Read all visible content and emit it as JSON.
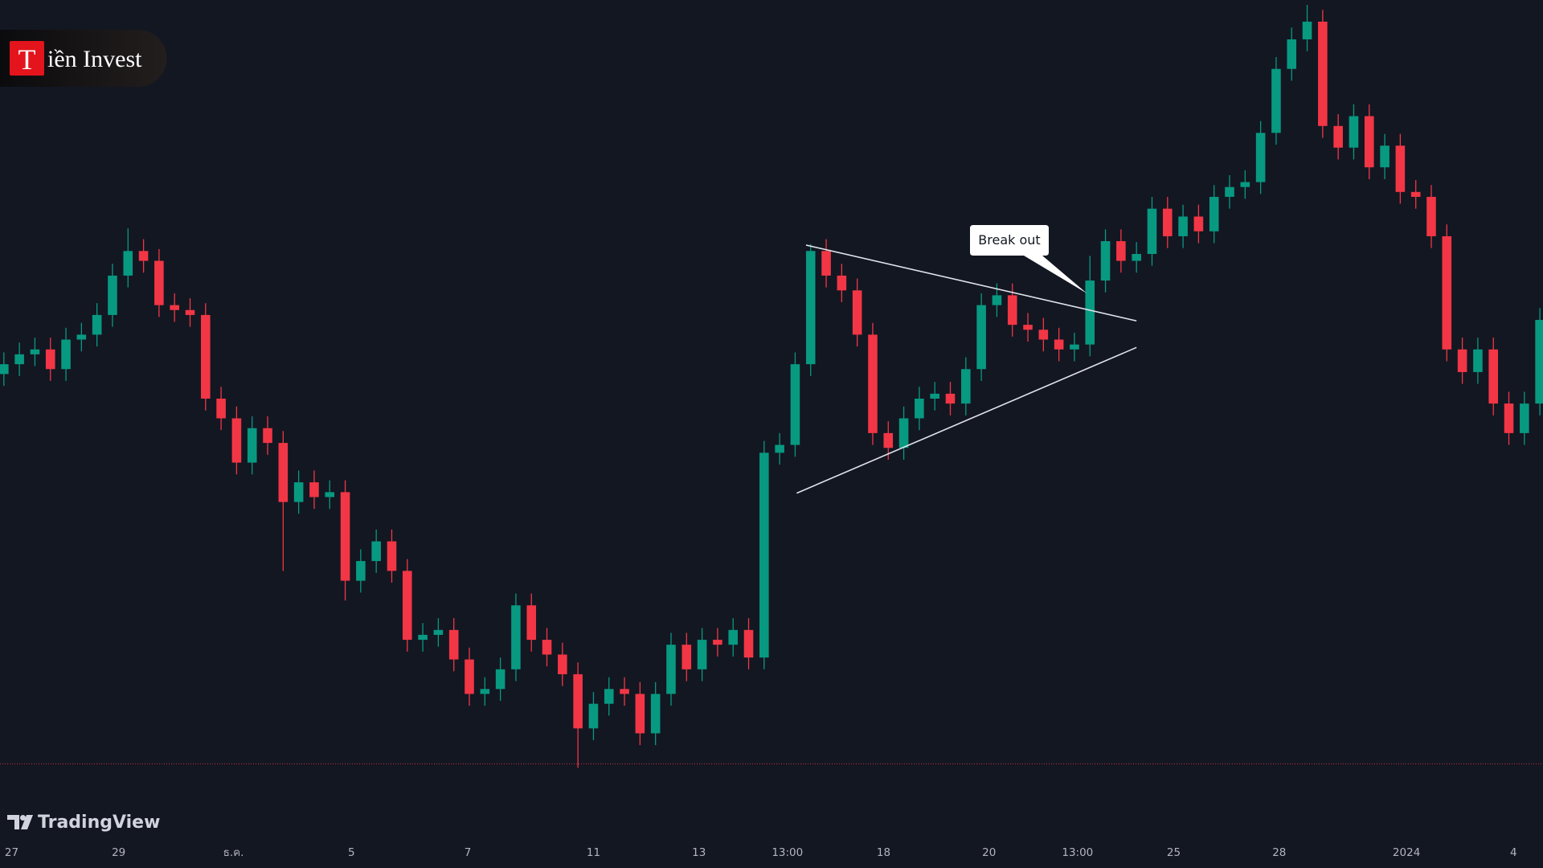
{
  "chart_data": {
    "type": "candlestick",
    "logo": {
      "letter": "T",
      "text": "iền Invest"
    },
    "watermark": "TradingView",
    "annotation": {
      "text": "Break out",
      "x": 69.8,
      "y": 602
    },
    "up_color": "#089981",
    "down_color": "#f23645",
    "xlim": [
      -0.25,
      99.2
    ],
    "ylim": [
      50,
      900
    ],
    "xticks": [
      {
        "value": 0.5,
        "label": "27"
      },
      {
        "value": 7.4,
        "label": "29"
      },
      {
        "value": 14.8,
        "label": "ธ.ค."
      },
      {
        "value": 22.4,
        "label": "5"
      },
      {
        "value": 29.9,
        "label": "7"
      },
      {
        "value": 38.0,
        "label": "11"
      },
      {
        "value": 44.8,
        "label": "13"
      },
      {
        "value": 50.5,
        "label": "13:00"
      },
      {
        "value": 56.7,
        "label": "18"
      },
      {
        "value": 63.5,
        "label": "20"
      },
      {
        "value": 69.2,
        "label": "13:00"
      },
      {
        "value": 75.4,
        "label": "25"
      },
      {
        "value": 82.2,
        "label": "28"
      },
      {
        "value": 90.4,
        "label": "2024"
      },
      {
        "value": 97.3,
        "label": "4"
      }
    ],
    "price_line": 124,
    "trendlines": [
      {
        "x": [
          51.7,
          73.0
        ],
        "y": [
          651,
          574
        ]
      },
      {
        "x": [
          51.1,
          73.0
        ],
        "y": [
          399,
          547
        ]
      }
    ],
    "open": [
      520,
      530,
      540,
      545,
      525,
      555,
      560,
      580,
      620,
      645,
      635,
      590,
      585,
      580,
      495,
      475,
      430,
      465,
      450,
      390,
      410,
      395,
      400,
      310,
      330,
      350,
      320,
      250,
      255,
      260,
      230,
      195,
      200,
      220,
      285,
      250,
      235,
      215,
      160,
      185,
      200,
      195,
      155,
      195,
      245,
      220,
      250,
      245,
      260,
      232,
      440,
      448,
      530,
      645,
      620,
      605,
      560,
      460,
      445,
      475,
      495,
      500,
      490,
      525,
      590,
      600,
      570,
      565,
      555,
      545,
      550,
      615,
      655,
      635,
      642,
      688,
      660,
      680,
      665,
      700,
      710,
      715,
      765,
      830,
      860,
      878,
      772,
      750,
      782,
      730,
      752,
      705,
      700,
      660,
      545,
      522,
      545,
      490,
      460,
      490
    ],
    "high": [
      542,
      552,
      557,
      557,
      567,
      572,
      592,
      632,
      668,
      657,
      647,
      602,
      597,
      592,
      507,
      487,
      477,
      477,
      462,
      422,
      422,
      412,
      412,
      342,
      362,
      362,
      332,
      267,
      272,
      272,
      242,
      212,
      232,
      297,
      297,
      262,
      247,
      227,
      197,
      212,
      212,
      207,
      207,
      257,
      257,
      262,
      262,
      272,
      272,
      452,
      460,
      542,
      652,
      657,
      632,
      617,
      572,
      472,
      487,
      507,
      512,
      512,
      537,
      602,
      612,
      612,
      582,
      577,
      567,
      562,
      640,
      667,
      667,
      654,
      700,
      700,
      692,
      692,
      712,
      722,
      727,
      777,
      842,
      872,
      895,
      890,
      784,
      794,
      794,
      764,
      764,
      717,
      712,
      672,
      557,
      557,
      557,
      502,
      502,
      587
    ],
    "low": [
      508,
      518,
      528,
      513,
      513,
      543,
      548,
      568,
      608,
      623,
      578,
      573,
      568,
      483,
      463,
      418,
      418,
      438,
      320,
      378,
      383,
      383,
      290,
      298,
      318,
      308,
      238,
      238,
      243,
      218,
      183,
      183,
      188,
      208,
      238,
      223,
      203,
      120,
      148,
      173,
      183,
      143,
      143,
      183,
      208,
      208,
      233,
      233,
      220,
      220,
      428,
      436,
      518,
      608,
      593,
      548,
      448,
      433,
      433,
      463,
      483,
      478,
      478,
      513,
      578,
      558,
      553,
      543,
      533,
      533,
      538,
      603,
      623,
      623,
      630,
      648,
      648,
      653,
      653,
      688,
      698,
      703,
      753,
      818,
      848,
      760,
      738,
      738,
      718,
      718,
      693,
      688,
      648,
      533,
      510,
      510,
      478,
      448,
      448,
      478
    ],
    "close": [
      530,
      540,
      545,
      525,
      555,
      560,
      580,
      620,
      645,
      635,
      590,
      585,
      580,
      495,
      475,
      430,
      465,
      450,
      390,
      410,
      395,
      400,
      310,
      330,
      350,
      320,
      250,
      255,
      260,
      230,
      195,
      200,
      220,
      285,
      250,
      235,
      215,
      160,
      185,
      200,
      195,
      155,
      195,
      245,
      220,
      250,
      245,
      260,
      232,
      440,
      448,
      530,
      645,
      620,
      605,
      560,
      460,
      445,
      475,
      495,
      500,
      490,
      525,
      590,
      600,
      570,
      565,
      555,
      545,
      550,
      615,
      655,
      635,
      642,
      688,
      660,
      680,
      665,
      700,
      710,
      715,
      765,
      830,
      860,
      878,
      772,
      750,
      782,
      730,
      752,
      705,
      700,
      660,
      545,
      522,
      545,
      490,
      460,
      490,
      575
    ]
  }
}
